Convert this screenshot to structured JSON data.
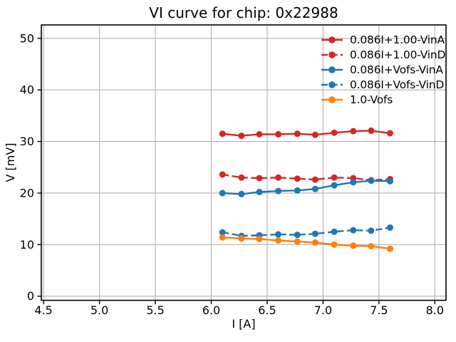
{
  "figure_background": "#ffffff",
  "chart_data": {
    "type": "line",
    "title": "VI curve for chip: 0x22988",
    "xlabel": "I [A]",
    "ylabel": "V [mV]",
    "xlim": [
      4.48,
      8.1
    ],
    "ylim": [
      -0.8,
      52.6
    ],
    "xticks": [
      4.5,
      5.0,
      5.5,
      6.0,
      6.5,
      7.0,
      7.5,
      8.0
    ],
    "xtick_labels": [
      "4.5",
      "5.0",
      "5.5",
      "6.0",
      "6.5",
      "7.0",
      "7.5",
      "8.0"
    ],
    "yticks": [
      0,
      10,
      20,
      30,
      40,
      50
    ],
    "ytick_labels": [
      "0",
      "10",
      "20",
      "30",
      "40",
      "50"
    ],
    "grid": true,
    "grid_color": "#b0b0b0",
    "spine_color": "#000000",
    "legend": {
      "position": "upper right",
      "frame": false
    },
    "x": [
      6.1,
      6.27,
      6.43,
      6.6,
      6.77,
      6.93,
      7.1,
      7.27,
      7.43,
      7.6
    ],
    "series": [
      {
        "name": "0.086I+1.00-VinA",
        "color": "#d62728",
        "line_style": "solid",
        "marker": "circle",
        "values": [
          31.5,
          31.1,
          31.4,
          31.4,
          31.5,
          31.3,
          31.7,
          32.0,
          32.1,
          31.6
        ]
      },
      {
        "name": "0.086I+1.00-VinD",
        "color": "#d62728",
        "line_style": "dashed",
        "marker": "circle",
        "values": [
          23.6,
          23.0,
          22.9,
          23.0,
          22.8,
          22.6,
          23.0,
          22.9,
          22.5,
          22.7
        ]
      },
      {
        "name": "0.086I+Vofs-VinA",
        "color": "#1f77b4",
        "line_style": "solid",
        "marker": "circle",
        "values": [
          20.0,
          19.8,
          20.2,
          20.4,
          20.5,
          20.8,
          21.5,
          22.1,
          22.4,
          22.3
        ]
      },
      {
        "name": "0.086I+Vofs-VinD",
        "color": "#1f77b4",
        "line_style": "dashed",
        "marker": "circle",
        "values": [
          12.4,
          11.7,
          11.8,
          12.0,
          11.9,
          12.1,
          12.5,
          12.8,
          12.7,
          13.3
        ]
      },
      {
        "name": "1.0-Vofs",
        "color": "#ff7f0e",
        "line_style": "solid",
        "marker": "circle",
        "values": [
          11.4,
          11.2,
          11.1,
          10.8,
          10.6,
          10.4,
          10.0,
          9.8,
          9.7,
          9.2
        ]
      }
    ]
  }
}
